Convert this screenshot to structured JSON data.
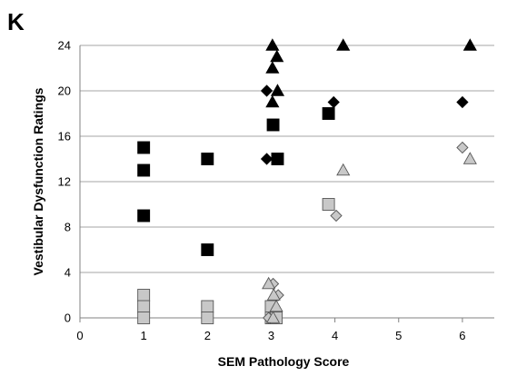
{
  "panel_label": "K",
  "chart_data": {
    "type": "scatter",
    "xlabel": "SEM Pathology Score",
    "ylabel": "Vestibular Dysfunction Ratings",
    "xlim": [
      0,
      6.5
    ],
    "ylim": [
      0,
      24
    ],
    "x_ticks": [
      0,
      1,
      2,
      3,
      4,
      5,
      6
    ],
    "y_ticks": [
      0,
      4,
      8,
      12,
      16,
      20,
      24
    ],
    "grid": "horizontal",
    "legend": "none",
    "colors": {
      "black": "#000000",
      "gray": "#c8c8c8",
      "outline": "#555555"
    },
    "series": [
      {
        "marker": "square",
        "fill": "black",
        "points": [
          [
            1,
            15
          ],
          [
            1,
            13
          ],
          [
            1,
            9
          ],
          [
            2,
            14
          ],
          [
            2,
            6
          ],
          [
            3.03,
            17
          ],
          [
            3.1,
            14
          ],
          [
            3.9,
            18
          ]
        ]
      },
      {
        "marker": "diamond",
        "fill": "black",
        "points": [
          [
            2.93,
            20
          ],
          [
            2.93,
            14
          ],
          [
            3.98,
            19
          ],
          [
            6,
            19
          ]
        ]
      },
      {
        "marker": "triangle",
        "fill": "black",
        "points": [
          [
            3.02,
            24
          ],
          [
            3.09,
            23
          ],
          [
            3.02,
            22
          ],
          [
            3.1,
            20
          ],
          [
            3.02,
            19
          ],
          [
            4.13,
            24
          ],
          [
            6.12,
            24
          ]
        ]
      },
      {
        "marker": "square",
        "fill": "gray",
        "points": [
          [
            1,
            2
          ],
          [
            1,
            1
          ],
          [
            1,
            0
          ],
          [
            2,
            1
          ],
          [
            2,
            0
          ],
          [
            3.0,
            1
          ],
          [
            3.0,
            0
          ],
          [
            3.08,
            0
          ],
          [
            3.9,
            10
          ]
        ]
      },
      {
        "marker": "diamond",
        "fill": "gray",
        "points": [
          [
            3.03,
            3
          ],
          [
            3.11,
            2
          ],
          [
            2.96,
            0
          ],
          [
            4.02,
            9
          ],
          [
            6,
            15
          ]
        ]
      },
      {
        "marker": "triangle",
        "fill": "gray",
        "points": [
          [
            2.96,
            3
          ],
          [
            3.04,
            2
          ],
          [
            3.08,
            1
          ],
          [
            3.03,
            0
          ],
          [
            4.13,
            13
          ],
          [
            6.12,
            14
          ]
        ]
      }
    ]
  }
}
